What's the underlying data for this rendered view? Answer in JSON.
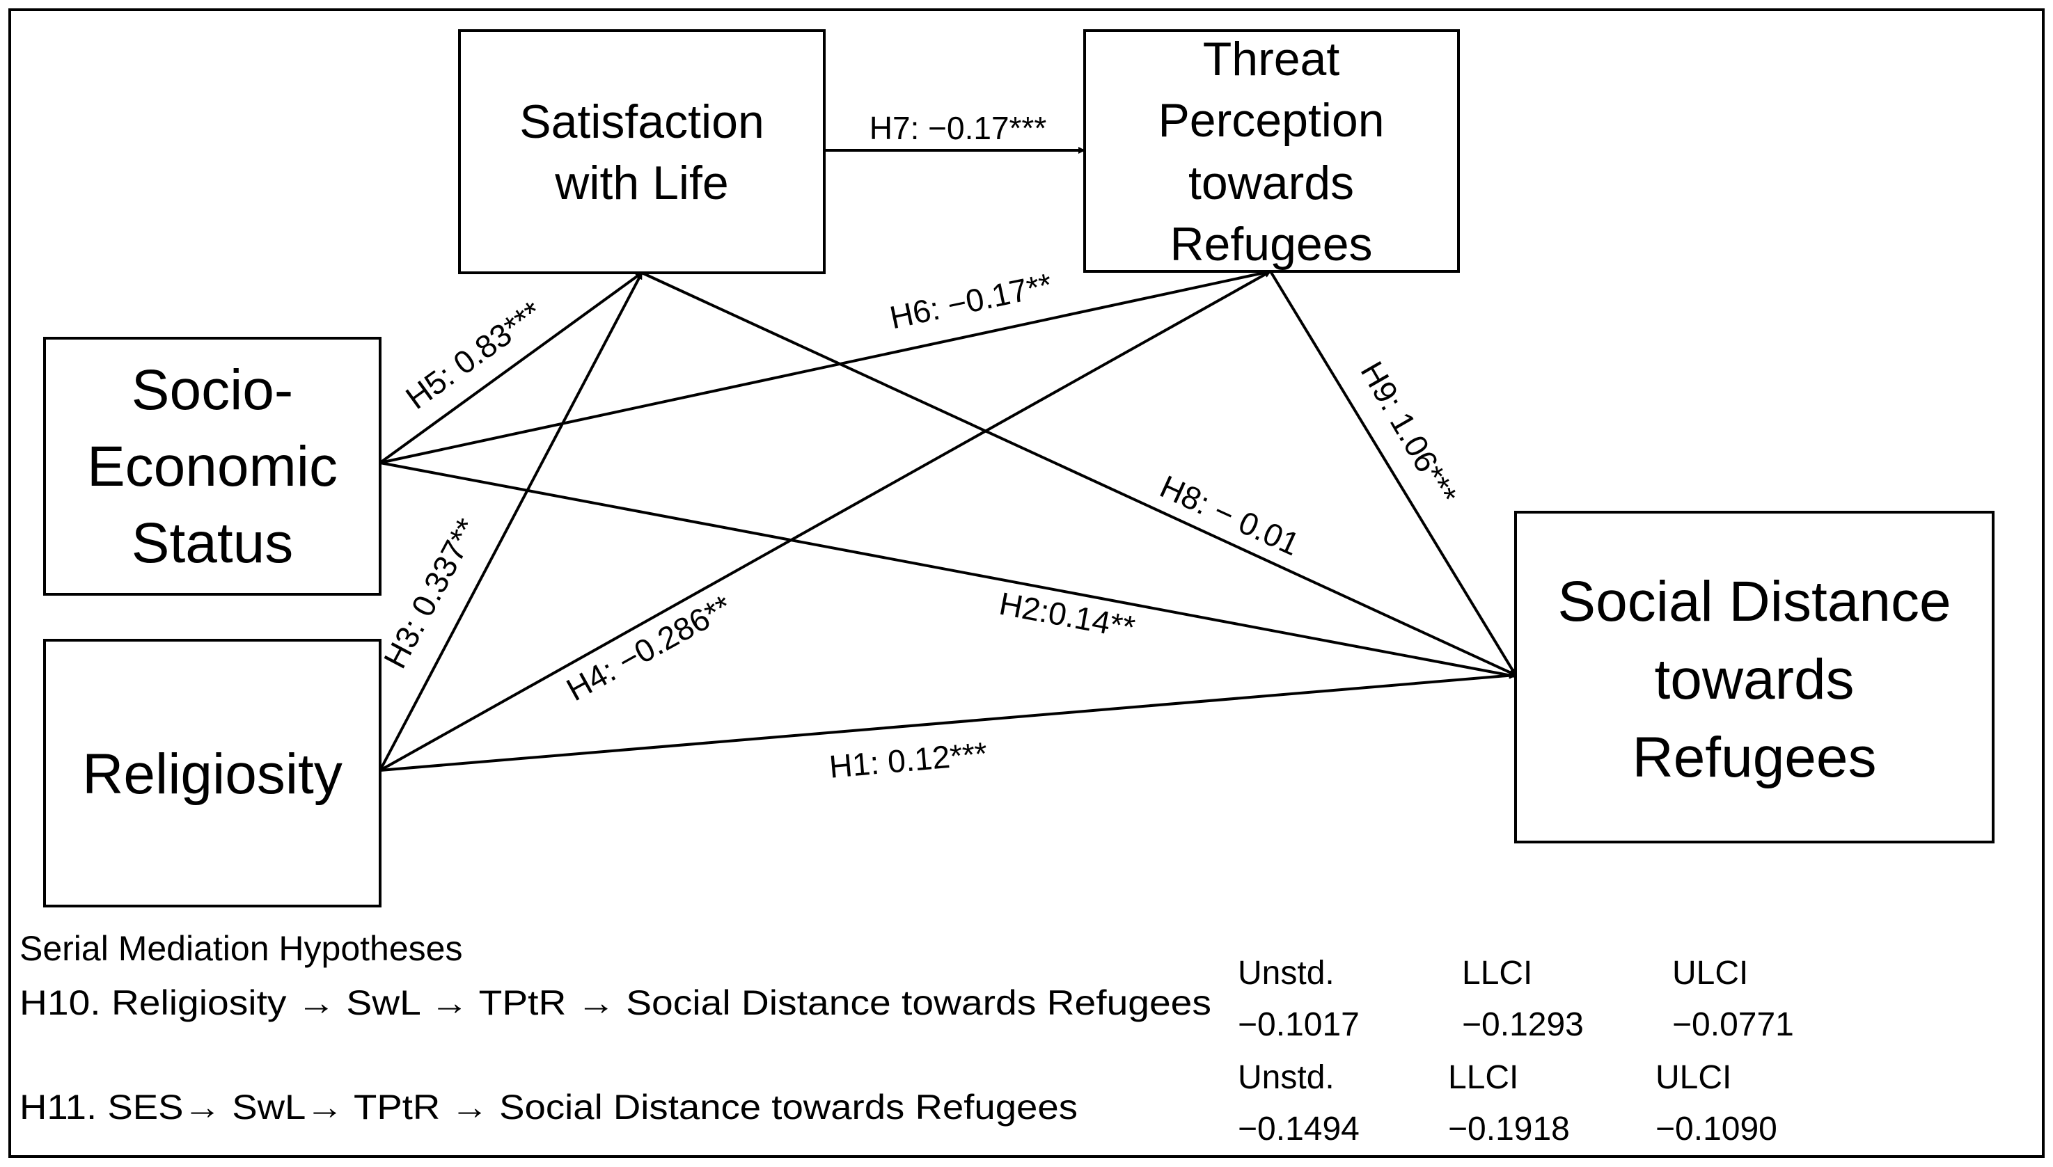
{
  "nodes": {
    "swl": {
      "lines": [
        "Satisfaction",
        "with Life"
      ]
    },
    "tptr": {
      "lines": [
        "Threat",
        "Perception",
        "towards",
        "Refugees"
      ]
    },
    "ses": {
      "lines": [
        "Socio-",
        "Economic",
        "Status"
      ]
    },
    "rel": {
      "lines": [
        "Religiosity"
      ]
    },
    "sd": {
      "lines": [
        "Social Distance",
        "towards",
        "Refugees"
      ]
    }
  },
  "edges": {
    "h1": "H1: 0.12***",
    "h2": "H2:0.14**",
    "h3": "H3: 0.337**",
    "h4": "H4: −0.286**",
    "h5": "H5: 0.83***",
    "h6": "H6: −0.17**",
    "h7": "H7: −0.17***",
    "h8": "H8: − 0.01",
    "h9": "H9: 1.06***"
  },
  "mediation": {
    "title": "Serial Mediation Hypotheses",
    "h10": {
      "label": "H10. Religiosity → SwL → TPtR → Social Distance towards Refugees",
      "headers": [
        "Unstd.",
        "LLCI",
        "ULCI"
      ],
      "values": [
        "−0.1017",
        "−0.1293",
        "−0.0771"
      ]
    },
    "h11": {
      "label": "H11. SES→ SwL→ TPtR → Social Distance towards Refugees",
      "headers": [
        "Unstd.",
        "LLCI",
        "ULCI"
      ],
      "values": [
        "−0.1494",
        "−0.1918",
        "−0.1090"
      ]
    }
  }
}
